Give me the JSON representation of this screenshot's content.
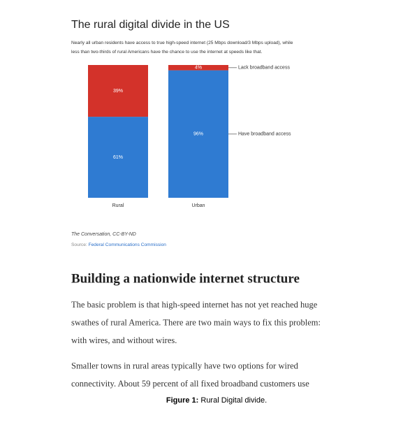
{
  "chart_data": {
    "type": "stacked-bar",
    "title": "The rural digital divide in the US",
    "subtitle": [
      "Nearly all urban residents have access to true high-speed internet (25 Mbps download/3 Mbps upload), while",
      "less than two-thirds of rural Americans have the chance to use the internet at speeds like that."
    ],
    "categories": [
      "Rural",
      "Urban"
    ],
    "series": [
      {
        "name": "Have broadband access",
        "color": "#2f7bd2",
        "values": [
          61,
          96
        ],
        "value_labels": [
          "61%",
          "96%"
        ]
      },
      {
        "name": "Lack broadband access",
        "color": "#d3322a",
        "values": [
          39,
          4
        ],
        "value_labels": [
          "39%",
          "4%"
        ]
      }
    ],
    "ylim": [
      0,
      100
    ]
  },
  "credit": "The Conversation, CC-BY-ND",
  "source_label": "Source:",
  "source_link": "Federal Communications Commission",
  "article": {
    "heading": "Building a nationwide internet structure",
    "paragraphs": [
      [
        "The basic problem is that high-speed internet has not yet reached huge",
        "swathes of rural America. There are two main ways to fix this problem:",
        "with wires, and without wires."
      ],
      [
        "Smaller towns in rural areas typically have two options for wired",
        "connectivity. About 59 percent of all fixed broadband customers use"
      ]
    ]
  },
  "caption": {
    "label": "Figure 1:",
    "text": "Rural Digital divide."
  }
}
